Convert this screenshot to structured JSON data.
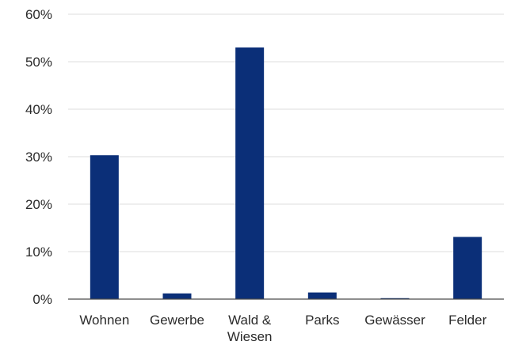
{
  "chart_data": {
    "type": "bar",
    "categories": [
      "Wohnen",
      "Gewerbe",
      "Wald & Wiesen",
      "Parks",
      "Gewässer",
      "Felder"
    ],
    "category_lines": [
      [
        "Wohnen"
      ],
      [
        "Gewerbe"
      ],
      [
        "Wald &",
        "Wiesen"
      ],
      [
        "Parks"
      ],
      [
        "Gewässer"
      ],
      [
        "Felder"
      ]
    ],
    "values": [
      30.3,
      1.2,
      53.0,
      1.4,
      0.2,
      13.1
    ],
    "ylim": [
      0,
      60
    ],
    "yticks": [
      0,
      10,
      20,
      30,
      40,
      50,
      60
    ],
    "ytick_labels": [
      "0%",
      "10%",
      "20%",
      "30%",
      "40%",
      "50%",
      "60%"
    ],
    "title": "",
    "xlabel": "",
    "ylabel": "",
    "grid": true,
    "bar_color": "#0b2f78",
    "grid_color": "#dcdcdc"
  }
}
